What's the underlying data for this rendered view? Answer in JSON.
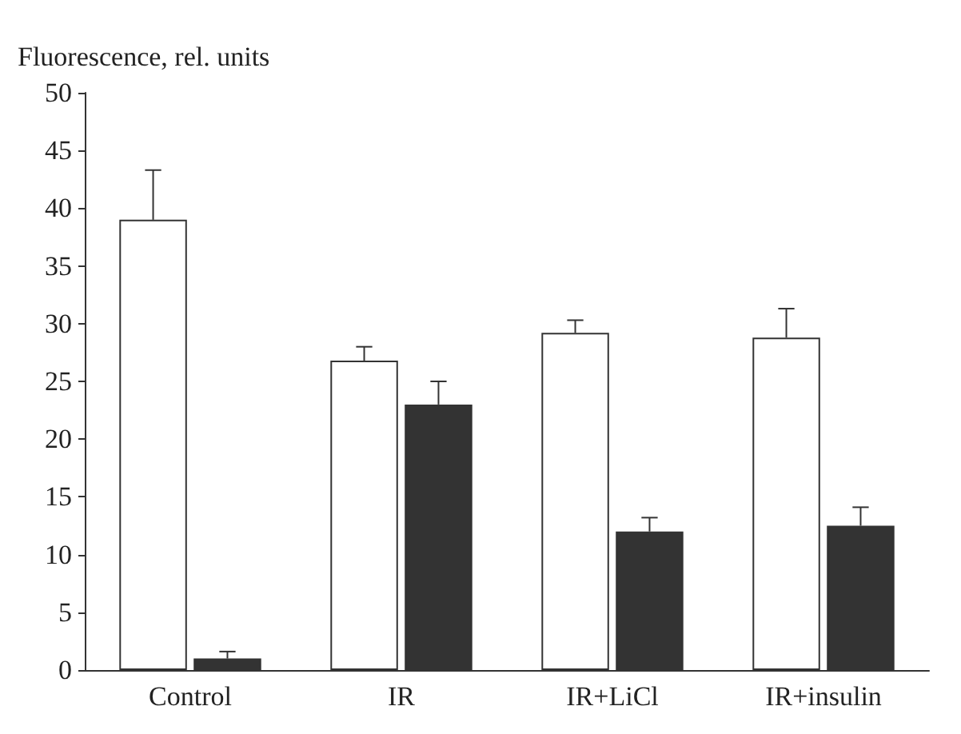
{
  "chart_data": {
    "type": "bar",
    "ylabel": "Fluorescence, rel. units",
    "categories": [
      "Control",
      "IR",
      "IR+LiCl",
      "IR+insulin"
    ],
    "series": [
      {
        "color": "#ffffff",
        "values": [
          39,
          26.8,
          29.2,
          28.8
        ],
        "errors": [
          [
            39,
            43.3
          ],
          [
            26.8,
            28
          ],
          [
            29.2,
            30.3
          ],
          [
            28.8,
            31.3
          ]
        ]
      },
      {
        "color": "#333333",
        "values": [
          1,
          23,
          12,
          12.5
        ],
        "errors": [
          [
            1,
            1.6
          ],
          [
            23,
            25
          ],
          [
            12,
            13.2
          ],
          [
            12.5,
            14.1
          ]
        ]
      }
    ],
    "ylim": [
      0,
      50
    ],
    "yticks": [
      0,
      5,
      10,
      15,
      20,
      25,
      30,
      35,
      40,
      45,
      50
    ],
    "grid": false
  }
}
